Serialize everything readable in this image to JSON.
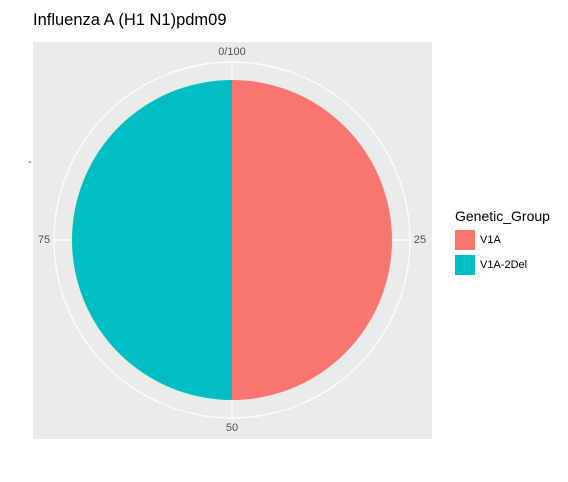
{
  "chart_data": {
    "type": "pie",
    "title": "Influenza A (H1 N1)pdm09",
    "legend_title": "Genetic_Group",
    "legend_position": "right",
    "grid": true,
    "theta_ticks": [
      "0/100",
      "25",
      "50",
      "75"
    ],
    "theta_tick_values": [
      0,
      25,
      50,
      75
    ],
    "theta_range": [
      0,
      100
    ],
    "series": [
      {
        "name": "V1A",
        "value": 50,
        "color": "#F8766D"
      },
      {
        "name": "V1A-2Del",
        "value": 50,
        "color": "#00BFC4"
      }
    ],
    "y_tick_mark": "-"
  },
  "colors": {
    "panel_background": "#EBEBEB",
    "grid_line": "#FFFFFF",
    "tick_text": "#4D4D4D"
  }
}
